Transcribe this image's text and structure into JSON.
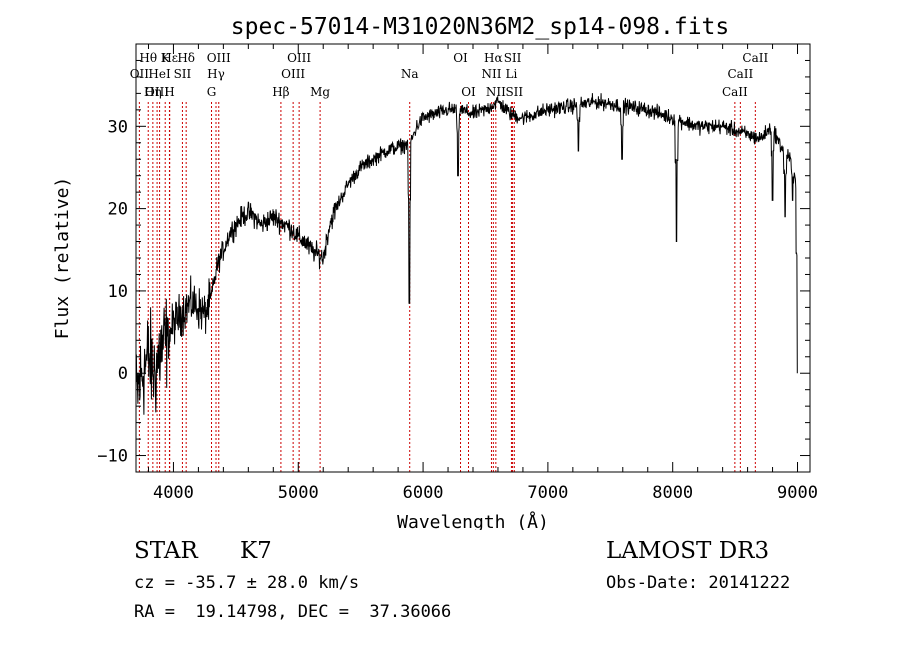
{
  "chart_data": {
    "type": "line",
    "title": "spec-57014-M31020N36M2_sp14-098.fits",
    "xlabel": "Wavelength (Å)",
    "ylabel": "Flux (relative)",
    "xlim": [
      3700,
      9100
    ],
    "ylim": [
      -12,
      40
    ],
    "xticks": [
      4000,
      5000,
      6000,
      7000,
      8000,
      9000
    ],
    "yticks": [
      -10,
      0,
      10,
      20,
      30
    ],
    "continuum": [
      [
        3700,
        -3
      ],
      [
        3750,
        0
      ],
      [
        3800,
        2
      ],
      [
        3850,
        0
      ],
      [
        3900,
        3
      ],
      [
        3950,
        4
      ],
      [
        4000,
        6
      ],
      [
        4050,
        7
      ],
      [
        4100,
        8
      ],
      [
        4150,
        8.5
      ],
      [
        4200,
        8
      ],
      [
        4250,
        7
      ],
      [
        4300,
        9
      ],
      [
        4350,
        13
      ],
      [
        4400,
        15
      ],
      [
        4450,
        17
      ],
      [
        4500,
        18
      ],
      [
        4550,
        19
      ],
      [
        4600,
        19.5
      ],
      [
        4650,
        19
      ],
      [
        4700,
        18
      ],
      [
        4750,
        18.5
      ],
      [
        4800,
        19
      ],
      [
        4850,
        18.5
      ],
      [
        4900,
        18
      ],
      [
        4950,
        17.5
      ],
      [
        5000,
        16.5
      ],
      [
        5050,
        16
      ],
      [
        5100,
        15
      ],
      [
        5150,
        14.5
      ],
      [
        5200,
        14
      ],
      [
        5250,
        18
      ],
      [
        5300,
        20
      ],
      [
        5400,
        23
      ],
      [
        5500,
        25
      ],
      [
        5600,
        26
      ],
      [
        5700,
        27
      ],
      [
        5800,
        27.5
      ],
      [
        5900,
        28
      ],
      [
        5950,
        30
      ],
      [
        6000,
        31
      ],
      [
        6100,
        31.5
      ],
      [
        6200,
        32
      ],
      [
        6300,
        32
      ],
      [
        6400,
        31.5
      ],
      [
        6500,
        32
      ],
      [
        6600,
        33
      ],
      [
        6700,
        31.5
      ],
      [
        6800,
        31
      ],
      [
        6900,
        31.5
      ],
      [
        7000,
        32
      ],
      [
        7200,
        32.5
      ],
      [
        7400,
        33
      ],
      [
        7600,
        32.5
      ],
      [
        7800,
        32
      ],
      [
        8000,
        31
      ],
      [
        8200,
        30
      ],
      [
        8400,
        30
      ],
      [
        8500,
        29.5
      ],
      [
        8600,
        29
      ],
      [
        8700,
        28.5
      ],
      [
        8800,
        30
      ],
      [
        8850,
        28
      ],
      [
        8900,
        27
      ],
      [
        8950,
        26
      ],
      [
        9000,
        22
      ]
    ],
    "absorption_features": [
      [
        5890,
        8.5
      ],
      [
        6280,
        24
      ],
      [
        7245,
        27
      ],
      [
        7594,
        26
      ],
      [
        8030,
        16
      ],
      [
        8800,
        21
      ],
      [
        8900,
        19
      ],
      [
        8960,
        21
      ],
      [
        9000,
        0
      ]
    ],
    "line_markers": [
      {
        "label": "Hθ",
        "wavelength": 3798,
        "row": 0
      },
      {
        "label": "OII",
        "wavelength": 3727,
        "row": 1
      },
      {
        "label": "OIII",
        "wavelength": 3869,
        "row": 2
      },
      {
        "label": "Hε",
        "wavelength": 3970,
        "row": 0
      },
      {
        "label": "K",
        "wavelength": 3934,
        "row": 0
      },
      {
        "label": "HeI",
        "wavelength": 3889,
        "row": 1
      },
      {
        "label": "Hη",
        "wavelength": 3835,
        "row": 2
      },
      {
        "label": "H",
        "wavelength": 3968,
        "row": 2
      },
      {
        "label": "SII",
        "wavelength": 4072,
        "row": 1
      },
      {
        "label": "Hδ",
        "wavelength": 4102,
        "row": 0
      },
      {
        "label": "OIII",
        "wavelength": 4363,
        "row": 0
      },
      {
        "label": "Hγ",
        "wavelength": 4341,
        "row": 1
      },
      {
        "label": "G",
        "wavelength": 4305,
        "row": 2
      },
      {
        "label": "Hβ",
        "wavelength": 4861,
        "row": 2
      },
      {
        "label": "OIII",
        "wavelength": 5007,
        "row": 0
      },
      {
        "label": "OIII",
        "wavelength": 4959,
        "row": 1
      },
      {
        "label": "Mg",
        "wavelength": 5175,
        "row": 2
      },
      {
        "label": "Na",
        "wavelength": 5893,
        "row": 1
      },
      {
        "label": "OI",
        "wavelength": 6300,
        "row": 0
      },
      {
        "label": "OI",
        "wavelength": 6364,
        "row": 2
      },
      {
        "label": "Hα",
        "wavelength": 6563,
        "row": 0
      },
      {
        "label": "SII",
        "wavelength": 6717,
        "row": 0
      },
      {
        "label": "NII",
        "wavelength": 6548,
        "row": 1
      },
      {
        "label": "Li",
        "wavelength": 6708,
        "row": 1
      },
      {
        "label": "NII",
        "wavelength": 6583,
        "row": 2
      },
      {
        "label": "SII",
        "wavelength": 6731,
        "row": 2
      },
      {
        "label": "CaII",
        "wavelength": 8662,
        "row": 0
      },
      {
        "label": "CaII",
        "wavelength": 8542,
        "row": 1
      },
      {
        "label": "CaII",
        "wavelength": 8498,
        "row": 2
      }
    ]
  },
  "info": {
    "class": "STAR",
    "subclass": "K7",
    "survey": "LAMOST DR3",
    "cz": "cz = -35.7 ± 28.0 km/s",
    "obs_date": "Obs-Date: 20141222",
    "coords": "RA =  19.14798, DEC =  37.36066"
  },
  "colors": {
    "spectrum": "#000000",
    "marker": "#cc0000"
  }
}
